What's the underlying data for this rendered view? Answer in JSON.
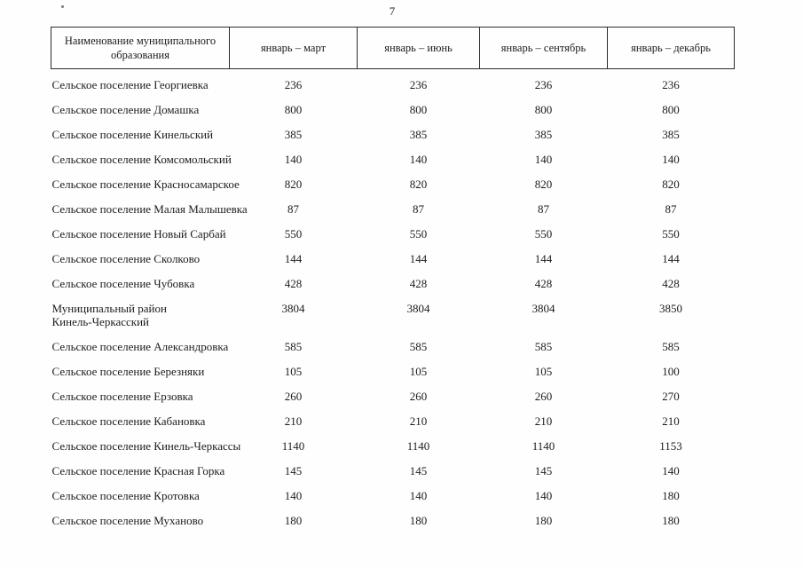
{
  "page_number": "7",
  "table": {
    "columns": [
      "Наименование муниципального образования",
      "январь – март",
      "январь – июнь",
      "январь – сентябрь",
      "январь – декабрь"
    ],
    "rows": [
      {
        "name": "Сельское поселение Георгиевка",
        "values": [
          "236",
          "236",
          "236",
          "236"
        ]
      },
      {
        "name": "Сельское поселение Домашка",
        "values": [
          "800",
          "800",
          "800",
          "800"
        ]
      },
      {
        "name": "Сельское поселение Кинельский",
        "values": [
          "385",
          "385",
          "385",
          "385"
        ]
      },
      {
        "name": "Сельское поселение Комсомольский",
        "values": [
          "140",
          "140",
          "140",
          "140"
        ]
      },
      {
        "name": "Сельское поселение Красносамарское",
        "values": [
          "820",
          "820",
          "820",
          "820"
        ]
      },
      {
        "name": "Сельское поселение Малая Малышевка",
        "values": [
          "87",
          "87",
          "87",
          "87"
        ]
      },
      {
        "name": "Сельское поселение Новый Сарбай",
        "values": [
          "550",
          "550",
          "550",
          "550"
        ]
      },
      {
        "name": "Сельское поселение Сколково",
        "values": [
          "144",
          "144",
          "144",
          "144"
        ]
      },
      {
        "name": "Сельское поселение Чубовка",
        "values": [
          "428",
          "428",
          "428",
          "428"
        ]
      },
      {
        "name": "Муниципальный район\nКинель-Черкасский",
        "values": [
          "3804",
          "3804",
          "3804",
          "3850"
        ]
      },
      {
        "name": "Сельское поселение Александровка",
        "values": [
          "585",
          "585",
          "585",
          "585"
        ]
      },
      {
        "name": "Сельское поселение Березняки",
        "values": [
          "105",
          "105",
          "105",
          "100"
        ]
      },
      {
        "name": "Сельское поселение Ерзовка",
        "values": [
          "260",
          "260",
          "260",
          "270"
        ]
      },
      {
        "name": "Сельское поселение Кабановка",
        "values": [
          "210",
          "210",
          "210",
          "210"
        ]
      },
      {
        "name": "Сельское поселение Кинель-Черкассы",
        "values": [
          "1140",
          "1140",
          "1140",
          "1153"
        ]
      },
      {
        "name": "Сельское поселение Красная Горка",
        "values": [
          "145",
          "145",
          "145",
          "140"
        ]
      },
      {
        "name": "Сельское поселение Кротовка",
        "values": [
          "140",
          "140",
          "140",
          "180"
        ]
      },
      {
        "name": "Сельское поселение Муханово",
        "values": [
          "180",
          "180",
          "180",
          "180"
        ]
      }
    ]
  }
}
